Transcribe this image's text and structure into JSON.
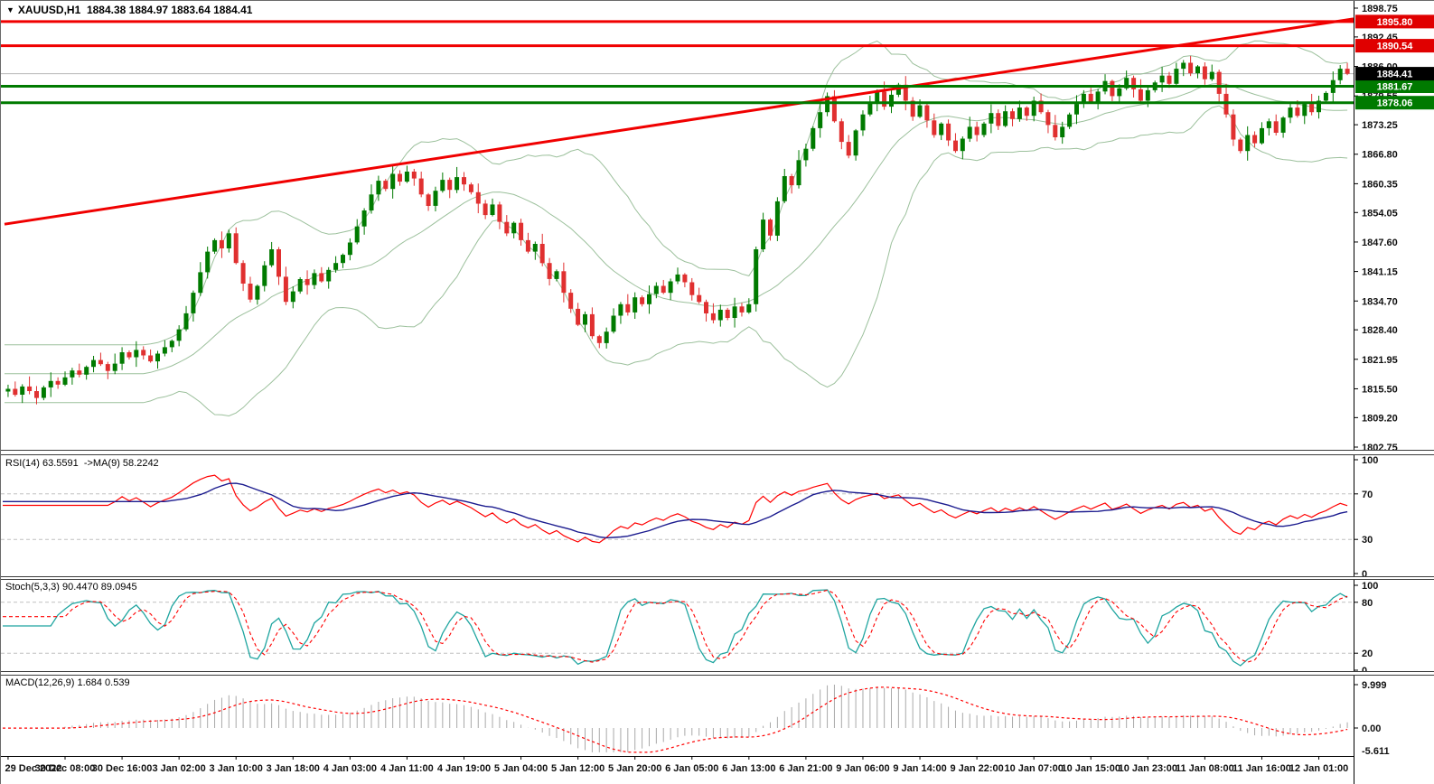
{
  "header": {
    "dropdown_arrow": "▼",
    "symbol": "XAUUSD,H1",
    "ohlc_values": "1884.38 1884.97 1883.64 1884.41"
  },
  "colors": {
    "bull_candle": "#007a00",
    "bear_candle": "#e03030",
    "bollinger": "#9cc09c",
    "object_red": "#f00000",
    "object_green": "#007a00",
    "current_price_line": "#b4b4b4",
    "label_red_bg": "#e00000",
    "label_green_bg": "#007a00",
    "label_black_bg": "#000000",
    "label_text": "#ffffff",
    "axis_text": "#111111",
    "level_dash": "#c0c0c0",
    "rsi_line": "#ff0000",
    "rsi_ma_line": "#1c1c8f",
    "stoch_k_line": "#1fa5a0",
    "stoch_d_line": "#ff0000",
    "macd_hist": "#a9a9a9",
    "macd_signal": "#ff0000",
    "border": "#000000"
  },
  "chart_data": {
    "type": "candlestick+indicators",
    "symbol": "XAUUSD",
    "timeframe": "H1",
    "ohlc_display": {
      "open": "1884.38",
      "high": "1884.97",
      "low": "1883.64",
      "close": "1884.41"
    },
    "price_axis_range": [
      1802.75,
      1898.75
    ],
    "price_axis_ticks": [
      "1898.75",
      "1892.45",
      "1886.00",
      "1879.55",
      "1873.25",
      "1866.80",
      "1860.35",
      "1854.05",
      "1847.60",
      "1841.15",
      "1834.70",
      "1828.40",
      "1821.95",
      "1815.50",
      "1809.20",
      "1802.75"
    ],
    "time_labels": [
      "29 Dec 2022",
      "30 Dec 08:00",
      "30 Dec 16:00",
      "3 Jan 02:00",
      "3 Jan 10:00",
      "3 Jan 18:00",
      "4 Jan 03:00",
      "4 Jan 11:00",
      "4 Jan 19:00",
      "5 Jan 04:00",
      "5 Jan 12:00",
      "5 Jan 20:00",
      "6 Jan 05:00",
      "6 Jan 13:00",
      "6 Jan 21:00",
      "9 Jan 06:00",
      "9 Jan 14:00",
      "9 Jan 22:00",
      "10 Jan 07:00",
      "10 Jan 15:00",
      "10 Jan 23:00",
      "11 Jan 08:00",
      "11 Jan 16:00",
      "12 Jan 01:00"
    ],
    "candles": {
      "closes": [
        1815.5,
        1814.2,
        1816.0,
        1815.0,
        1813.5,
        1815.8,
        1817.2,
        1816.4,
        1818.0,
        1819.5,
        1818.6,
        1820.3,
        1821.8,
        1820.9,
        1819.4,
        1821.0,
        1823.5,
        1822.4,
        1824.0,
        1822.8,
        1821.5,
        1823.2,
        1824.6,
        1826.0,
        1828.5,
        1832.0,
        1836.5,
        1841.0,
        1845.5,
        1848.0,
        1846.2,
        1849.5,
        1843.0,
        1838.5,
        1835.0,
        1838.0,
        1842.5,
        1846.0,
        1840.0,
        1834.5,
        1836.8,
        1839.5,
        1838.2,
        1840.8,
        1839.0,
        1841.5,
        1843.0,
        1844.8,
        1847.5,
        1851.0,
        1854.5,
        1858.0,
        1861.0,
        1859.2,
        1862.5,
        1860.8,
        1863.0,
        1861.5,
        1858.0,
        1855.5,
        1858.8,
        1861.2,
        1859.0,
        1861.8,
        1860.2,
        1858.5,
        1856.0,
        1853.5,
        1855.8,
        1852.0,
        1849.5,
        1851.8,
        1848.0,
        1845.5,
        1847.2,
        1843.0,
        1839.5,
        1841.2,
        1836.5,
        1833.0,
        1829.5,
        1831.8,
        1827.0,
        1825.5,
        1828.0,
        1831.5,
        1834.0,
        1832.2,
        1835.5,
        1834.0,
        1836.2,
        1838.0,
        1836.5,
        1839.0,
        1840.5,
        1838.8,
        1836.0,
        1834.5,
        1832.0,
        1830.5,
        1832.8,
        1831.0,
        1833.5,
        1832.2,
        1834.0,
        1846.0,
        1852.5,
        1849.0,
        1856.5,
        1862.0,
        1860.0,
        1865.5,
        1868.0,
        1872.5,
        1876.0,
        1879.5,
        1874.0,
        1869.5,
        1866.5,
        1872.0,
        1875.5,
        1878.0,
        1880.5,
        1877.2,
        1879.8,
        1882.0,
        1878.5,
        1875.0,
        1877.5,
        1874.2,
        1871.0,
        1873.5,
        1869.8,
        1867.5,
        1870.2,
        1872.8,
        1871.0,
        1873.5,
        1875.8,
        1873.0,
        1876.2,
        1874.5,
        1877.0,
        1875.2,
        1878.5,
        1876.0,
        1873.2,
        1870.5,
        1872.8,
        1875.5,
        1877.8,
        1880.0,
        1878.2,
        1880.5,
        1882.8,
        1879.5,
        1881.2,
        1883.5,
        1881.0,
        1878.5,
        1880.8,
        1882.5,
        1884.0,
        1882.2,
        1885.5,
        1886.8,
        1884.5,
        1886.0,
        1883.2,
        1884.8,
        1880.0,
        1875.5,
        1870.0,
        1867.5,
        1871.0,
        1869.2,
        1872.5,
        1874.0,
        1871.5,
        1874.8,
        1877.0,
        1875.2,
        1877.8,
        1876.0,
        1878.5,
        1880.2,
        1883.0,
        1885.5,
        1884.4
      ],
      "high_wiggle": [
        0.9,
        1.6,
        0.5,
        2.2,
        1.1,
        0.4,
        1.9,
        0.8,
        1.3,
        0.6,
        1.5,
        0.3
      ],
      "low_wiggle": [
        1.2,
        0.4,
        1.8,
        0.7,
        1.4,
        0.5,
        2.1,
        0.9,
        0.3,
        1.6,
        0.6,
        1.1
      ]
    },
    "bollinger": {
      "period": 20,
      "deviation": 2
    },
    "horizontal_lines": [
      {
        "price": 1895.8,
        "label": "1895.80",
        "color": "#f00000",
        "width": 3,
        "label_bg": "#e00000",
        "name": "resistance-1895"
      },
      {
        "price": 1890.54,
        "label": "1890.54",
        "color": "#f00000",
        "width": 3,
        "label_bg": "#e00000",
        "name": "resistance-1890"
      },
      {
        "price": 1881.67,
        "label": "1881.67",
        "color": "#007a00",
        "width": 3,
        "label_bg": "#007a00",
        "name": "support-1881"
      },
      {
        "price": 1878.06,
        "label": "1878.06",
        "color": "#007a00",
        "width": 3,
        "label_bg": "#007a00",
        "name": "support-1878"
      }
    ],
    "current_price": {
      "value": "1884.41",
      "price": 1884.41
    },
    "trendline": {
      "price_start": 1851.5,
      "price_end": 1896.4,
      "width": 3
    },
    "rsi_panel": {
      "label": "RSI(14) 63.5591  ->MA(9) 58.2242",
      "period": 14,
      "ma_period": 9,
      "levels": [
        70,
        30
      ],
      "axis_ticks": [
        "100",
        "70",
        "30",
        "0"
      ],
      "range": [
        0,
        100
      ],
      "value": 63.5591,
      "ma_value": 58.2242
    },
    "stoch_panel": {
      "label": "Stoch(5,3,3) 90.4470 89.0945",
      "k_period": 5,
      "d_period": 3,
      "slowing": 3,
      "levels": [
        80,
        20
      ],
      "axis_ticks": [
        "100",
        "80",
        "20",
        "0"
      ],
      "range": [
        0,
        100
      ],
      "k_value": 90.447,
      "d_value": 89.0945
    },
    "macd_panel": {
      "label": "MACD(12,26,9) 1.684 0.539",
      "fast": 12,
      "slow": 26,
      "signal": 9,
      "axis_top": "9.999",
      "axis_zero": "0.00",
      "axis_bottom": "-5.611",
      "range": [
        -5.611,
        9.999
      ],
      "macd_value": 1.684,
      "signal_value": 0.539
    }
  }
}
